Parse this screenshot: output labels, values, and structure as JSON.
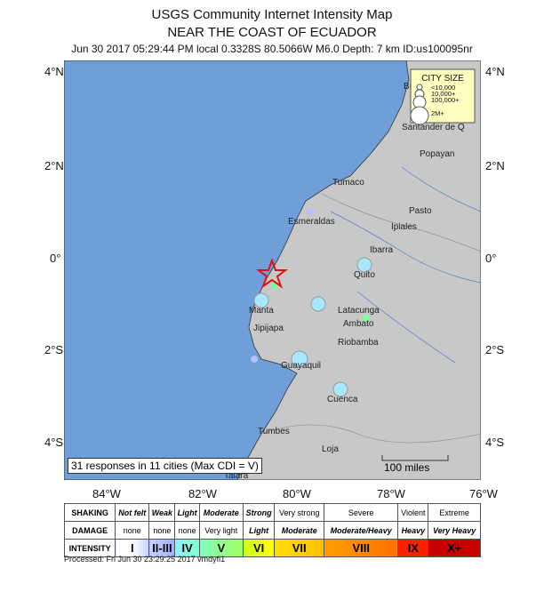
{
  "title": "USGS Community Internet Intensity Map",
  "subtitle": "NEAR THE COAST OF ECUADOR",
  "event_info": "Jun 30 2017 05:29:44 PM local 0.3328S 80.5066W M6.0 Depth: 7 km ID:us100095nr",
  "lat_labels": [
    "4°N",
    "2°N",
    "0°",
    "2°S",
    "4°S"
  ],
  "lon_labels": [
    "84°W",
    "82°W",
    "80°W",
    "78°W",
    "76°W"
  ],
  "colors": {
    "ocean": "#6f9fd8",
    "land": "#c8c8c8",
    "legend_bg": "#ffffc0",
    "epicenter": "#e01010",
    "response": "#a8e8ff"
  },
  "cities": [
    "Bucaramanga",
    "Santander de Q",
    "Popayan",
    "Tumaco",
    "Pasto",
    "Esmeraldas",
    "Ipiales",
    "Ibarra",
    "Quito",
    "Manta",
    "Latacunga",
    "Ambato",
    "Jipijapa",
    "Riobamba",
    "Guayaquil",
    "Cuenca",
    "Tumbes",
    "Loja",
    "Talara"
  ],
  "city_size": {
    "title": "CITY SIZE",
    "labels": [
      "<10,000",
      "10,000+",
      "100,000+",
      "2M+"
    ]
  },
  "responses_note": "31 responses in 11 cities (Max CDI = V)",
  "scale_bar": "100 miles",
  "legend": {
    "shaking_label": "SHAKING",
    "damage_label": "DAMAGE",
    "intensity_label": "INTENSITY",
    "shaking": [
      "Not felt",
      "Weak",
      "Light",
      "Moderate",
      "Strong",
      "Very strong",
      "Severe",
      "Violent",
      "Extreme"
    ],
    "damage": [
      "none",
      "none",
      "none",
      "Very light",
      "Light",
      "Moderate",
      "Moderate/Heavy",
      "Heavy",
      "Very Heavy"
    ],
    "intensity": [
      "I",
      "II-III",
      "IV",
      "V",
      "VI",
      "VII",
      "VIII",
      "IX",
      "X+"
    ],
    "intensity_colors": [
      "#ffffff",
      "#b8c0ff",
      "#90f0ff",
      "#80ffa0",
      "#ffff20",
      "#ffd000",
      "#ff9000",
      "#ff2000",
      "#c80000"
    ]
  },
  "processed": "Processed: Fri Jun 30 23:29:25 2017 vmdyfi1"
}
